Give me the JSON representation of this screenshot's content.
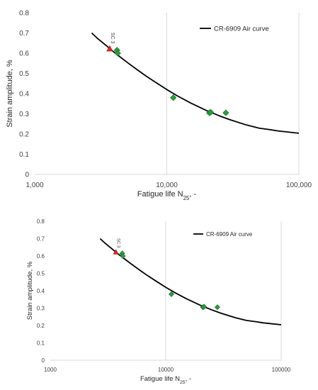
{
  "chart_data": [
    {
      "type": "scatter",
      "title": "",
      "xlabel_main": "Fatigue life N",
      "xlabel_sub": "25",
      "xlabel_tail": ", -",
      "ylabel": "Strain amplitude, %",
      "xscale": "log",
      "xlim": [
        1000,
        100000
      ],
      "ylim": [
        0,
        0.8
      ],
      "xticks": [
        1000,
        10000,
        100000
      ],
      "xtick_labels": [
        "1,000",
        "10,000",
        "100,000"
      ],
      "yticks": [
        0,
        0.1,
        0.2,
        0.3,
        0.4,
        0.5,
        0.6,
        0.7,
        0.8
      ],
      "ytick_labels": [
        "0",
        "0.1",
        "0.2",
        "0.3",
        "0.4",
        "0.5",
        "0.6",
        "0.7",
        "0.8"
      ],
      "grid": "vertical",
      "legend": {
        "placement": "top-right",
        "entries": [
          "CR-6909 Air curve"
        ]
      },
      "curve": {
        "name": "CR-6909 Air curve",
        "color": "#000000",
        "x": [
          2700,
          3000,
          3500,
          4000,
          5000,
          6000,
          7000,
          8000,
          10000,
          12000,
          15000,
          20000,
          25000,
          30000,
          40000,
          50000,
          60000,
          70000,
          80000,
          100000
        ],
        "y": [
          0.7,
          0.672,
          0.636,
          0.604,
          0.555,
          0.517,
          0.486,
          0.461,
          0.42,
          0.389,
          0.355,
          0.316,
          0.29,
          0.271,
          0.245,
          0.229,
          0.222,
          0.215,
          0.211,
          0.204
        ]
      },
      "series": [
        {
          "marker": "diamond",
          "color": "#2e9b3e",
          "x": [
            4200,
            4250,
            11200,
            21000,
            21500,
            28000
          ],
          "y": [
            0.615,
            0.6,
            0.38,
            0.305,
            0.308,
            0.305
          ]
        },
        {
          "marker": "triangle",
          "color": "#d62728",
          "x": [
            3700
          ],
          "y": [
            0.622
          ]
        }
      ],
      "annotation": {
        "text": "SC 3",
        "x": 3800,
        "y": 0.675
      }
    },
    {
      "type": "scatter",
      "title": "",
      "xlabel_main": "Fatigue life N",
      "xlabel_sub": "25",
      "xlabel_tail": ", -",
      "ylabel": "Strain amplitude, %",
      "xscale": "log",
      "xlim": [
        1000,
        100000
      ],
      "ylim": [
        0,
        0.8
      ],
      "xticks": [
        1000,
        10000,
        100000
      ],
      "xtick_labels": [
        "1000",
        "10000",
        "100000"
      ],
      "yticks": [
        0,
        0.1,
        0.2,
        0.3,
        0.4,
        0.5,
        0.6,
        0.7,
        0.8
      ],
      "ytick_labels": [
        "0",
        "0.1",
        "0.2",
        "0.3",
        "0.4",
        "0.5",
        "0.6",
        "0.7",
        "0.8"
      ],
      "grid": "vertical",
      "legend": {
        "placement": "top-right",
        "entries": [
          "CR-6909 Air curve"
        ]
      },
      "curve": {
        "name": "CR-6909 Air curve",
        "color": "#000000",
        "x": [
          2700,
          3000,
          3500,
          4000,
          5000,
          6000,
          7000,
          8000,
          10000,
          12000,
          15000,
          20000,
          25000,
          30000,
          40000,
          50000,
          60000,
          70000,
          80000,
          100000
        ],
        "y": [
          0.7,
          0.672,
          0.636,
          0.604,
          0.555,
          0.517,
          0.486,
          0.461,
          0.42,
          0.389,
          0.355,
          0.316,
          0.29,
          0.271,
          0.245,
          0.229,
          0.222,
          0.215,
          0.211,
          0.204
        ]
      },
      "series": [
        {
          "marker": "diamond",
          "color": "#2e9b3e",
          "x": [
            4200,
            4250,
            11200,
            21000,
            21500,
            28000
          ],
          "y": [
            0.615,
            0.6,
            0.38,
            0.305,
            0.308,
            0.305
          ]
        },
        {
          "marker": "triangle",
          "color": "#d62728",
          "x": [
            3700
          ],
          "y": [
            0.622
          ]
        }
      ],
      "annotation": {
        "text": "SC 3",
        "x": 3800,
        "y": 0.675
      }
    }
  ]
}
